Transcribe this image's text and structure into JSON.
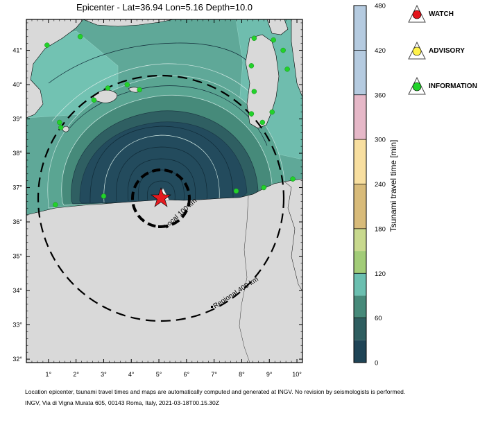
{
  "title": "Epicenter - Lat=36.94 Lon=5.16 Depth=10.0",
  "epicenter": {
    "lat": 36.94,
    "lon": 5.16,
    "depth": 10.0
  },
  "map": {
    "lon_range": [
      0.2,
      10.2
    ],
    "lat_range": [
      31.9,
      41.9
    ],
    "lon_ticks": [
      1,
      2,
      3,
      4,
      5,
      6,
      7,
      8,
      9,
      10
    ],
    "lat_ticks": [
      32,
      33,
      34,
      35,
      36,
      37,
      38,
      39,
      40,
      41
    ],
    "tick_suffix": "°",
    "land_color": "#d9d9d9",
    "ocean_colors": [
      "#26485a",
      "#3f7f75",
      "#5fa898",
      "#72c2b2"
    ]
  },
  "circles": [
    {
      "label": "Local 100 km",
      "radius_km": 100
    },
    {
      "label": "Regional 400 km",
      "radius_km": 400
    }
  ],
  "colorbar": {
    "title": "Tsunami travel time [min]",
    "ticks": [
      0,
      60,
      120,
      180,
      240,
      300,
      360,
      420,
      480
    ],
    "bands": [
      {
        "from": 0,
        "to": 30,
        "color": "#1f4456"
      },
      {
        "from": 30,
        "to": 60,
        "color": "#2f5e60"
      },
      {
        "from": 60,
        "to": 90,
        "color": "#478a7a"
      },
      {
        "from": 90,
        "to": 120,
        "color": "#6bbfb0"
      },
      {
        "from": 120,
        "to": 150,
        "color": "#a2cc78"
      },
      {
        "from": 150,
        "to": 180,
        "color": "#c8d98e"
      },
      {
        "from": 180,
        "to": 240,
        "color": "#d8bb7a"
      },
      {
        "from": 240,
        "to": 300,
        "color": "#f8dfa0"
      },
      {
        "from": 300,
        "to": 360,
        "color": "#e6b8c8"
      },
      {
        "from": 360,
        "to": 480,
        "color": "#b5cbe0"
      }
    ]
  },
  "legend": [
    {
      "label": "WATCH",
      "color": "#e3141b"
    },
    {
      "label": "ADVISORY",
      "color": "#fff24a"
    },
    {
      "label": "INFORMATION",
      "color": "#22d22a"
    }
  ],
  "stations": {
    "advisory": [
      [
        5.15,
        36.78
      ]
    ],
    "information": [
      [
        0.95,
        41.15
      ],
      [
        2.15,
        41.4
      ],
      [
        1.4,
        38.9
      ],
      [
        1.45,
        38.75
      ],
      [
        2.65,
        39.55
      ],
      [
        3.15,
        39.9
      ],
      [
        3.85,
        40.0
      ],
      [
        4.3,
        39.85
      ],
      [
        8.45,
        41.35
      ],
      [
        9.15,
        41.3
      ],
      [
        9.5,
        41.0
      ],
      [
        9.65,
        40.45
      ],
      [
        8.35,
        40.55
      ],
      [
        8.45,
        39.8
      ],
      [
        8.35,
        39.15
      ],
      [
        8.75,
        38.9
      ],
      [
        9.1,
        39.2
      ],
      [
        8.8,
        37.0
      ],
      [
        7.8,
        36.9
      ],
      [
        9.85,
        37.25
      ],
      [
        3.0,
        36.75
      ],
      [
        1.25,
        36.5
      ]
    ]
  },
  "footer": [
    "Location epicenter, tsunami travel times and maps are automatically computed and generated at INGV. No revision by seismologists is performed.",
    "INGV, Via di Vigna Murata 605, 00143 Roma, Italy, 2021-03-18T00.15.30Z"
  ]
}
